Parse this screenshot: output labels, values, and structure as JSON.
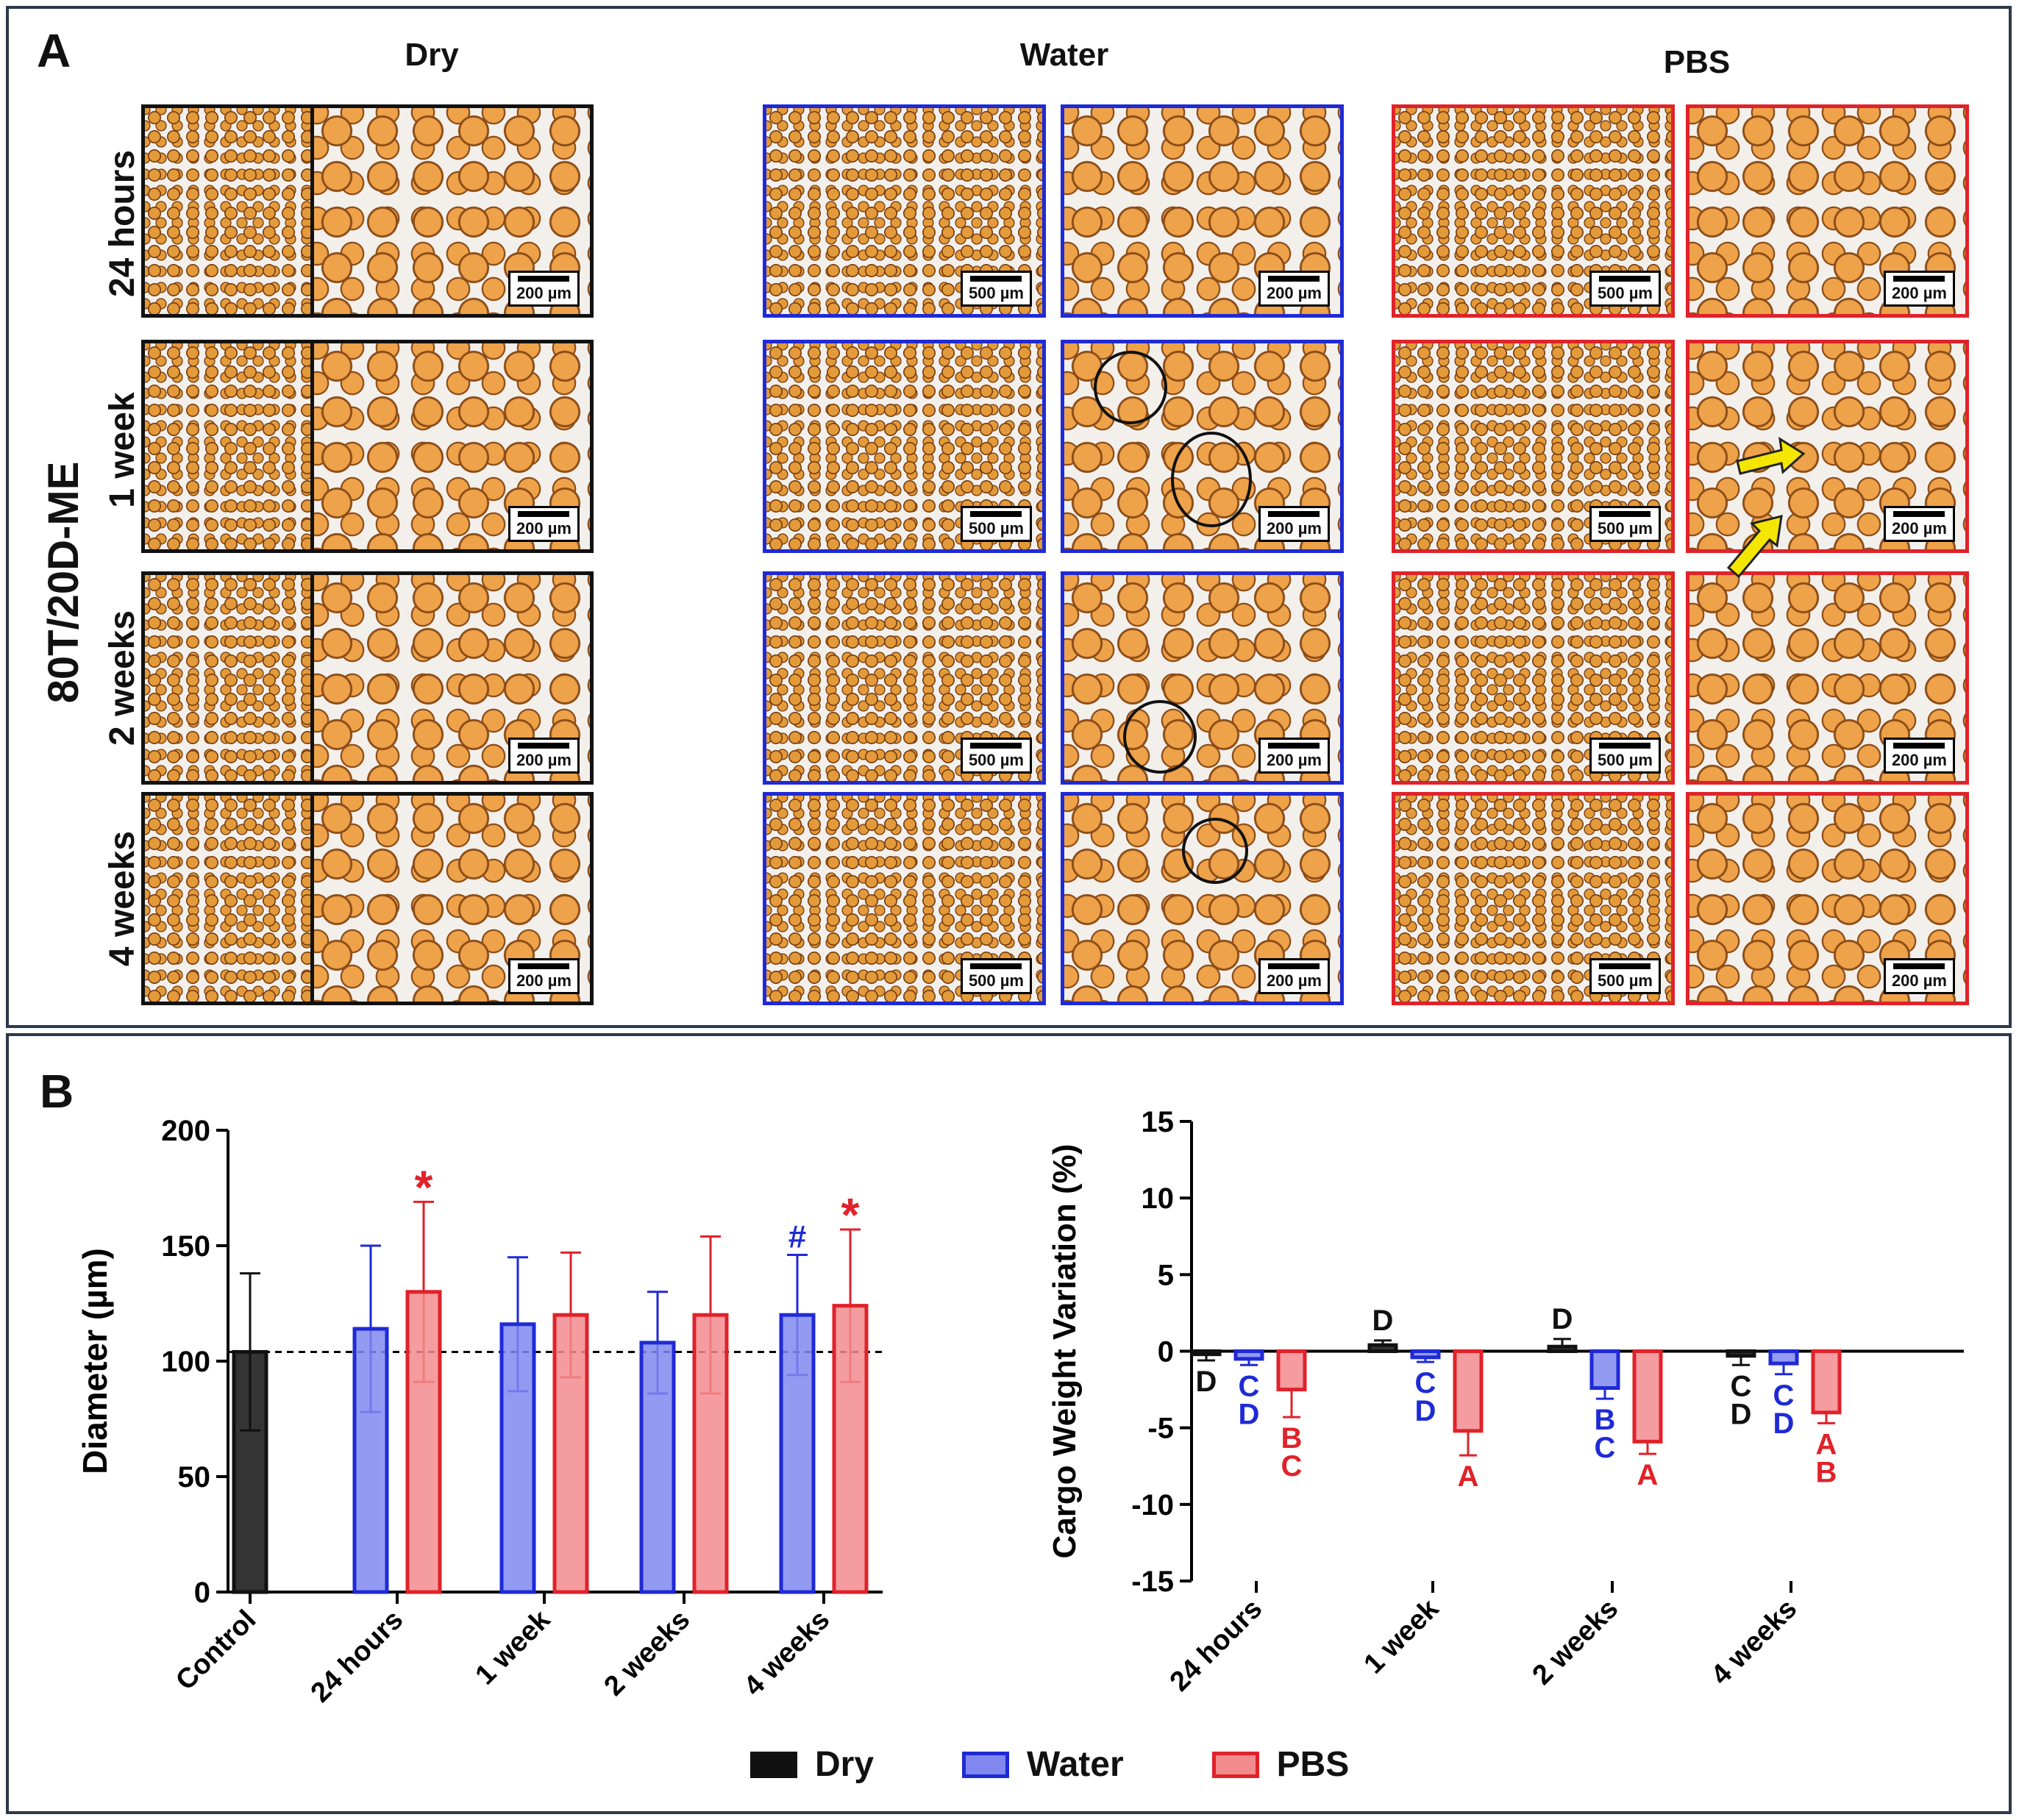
{
  "panel_a": {
    "label": "A",
    "ylabel": "80T/20D-ME",
    "columns": [
      {
        "title": "Dry",
        "color": "#111111"
      },
      {
        "title": "Water",
        "color": "#1f2ad6"
      },
      {
        "title": "PBS",
        "color": "#e0222a"
      }
    ],
    "rows": [
      "24 hours",
      "1 week",
      "2 weeks",
      "4 weeks"
    ],
    "scale_low": "500 µm",
    "scale_high": "200 µm"
  },
  "panel_b": {
    "label": "B",
    "legend": [
      {
        "name": "Dry",
        "color": "#111111",
        "fill": "#111111"
      },
      {
        "name": "Water",
        "color": "#1f2ad6",
        "fill": "#8088f0"
      },
      {
        "name": "PBS",
        "color": "#e0222a",
        "fill": "#f28b8e"
      }
    ]
  },
  "chart_data": [
    {
      "type": "bar",
      "ylabel": "Diameter (µm)",
      "ylim": [
        0,
        200
      ],
      "yticks": [
        0,
        50,
        100,
        150,
        200
      ],
      "reference_line": 104,
      "categories": [
        "Control",
        "24 hours",
        "1 week",
        "2 weeks",
        "4 weeks"
      ],
      "series": [
        {
          "name": "Dry",
          "values": [
            104,
            null,
            null,
            null,
            null
          ],
          "errors": [
            34,
            null,
            null,
            null,
            null
          ]
        },
        {
          "name": "Water",
          "values": [
            null,
            114,
            116,
            108,
            120
          ],
          "errors": [
            null,
            36,
            29,
            22,
            26
          ]
        },
        {
          "name": "PBS",
          "values": [
            null,
            130,
            120,
            120,
            124
          ],
          "errors": [
            null,
            39,
            27,
            34,
            33
          ]
        }
      ],
      "annotations": [
        {
          "category": "24 hours",
          "series": "PBS",
          "text": "*"
        },
        {
          "category": "4 weeks",
          "series": "Water",
          "text": "#"
        },
        {
          "category": "4 weeks",
          "series": "PBS",
          "text": "*"
        }
      ]
    },
    {
      "type": "bar",
      "ylabel": "Cargo Weight Variation (%)",
      "ylim": [
        -15,
        15
      ],
      "yticks": [
        -15,
        -10,
        -5,
        0,
        5,
        10,
        15
      ],
      "categories": [
        "24 hours",
        "1 week",
        "2 weeks",
        "4 weeks"
      ],
      "series": [
        {
          "name": "Dry",
          "values": [
            -0.2,
            0.4,
            0.3,
            -0.3
          ],
          "errors": [
            0.4,
            0.3,
            0.5,
            0.6
          ]
        },
        {
          "name": "Water",
          "values": [
            -0.5,
            -0.4,
            -2.4,
            -0.8
          ],
          "errors": [
            0.4,
            0.3,
            0.7,
            0.7
          ]
        },
        {
          "name": "PBS",
          "values": [
            -2.5,
            -5.2,
            -5.9,
            -4.0
          ],
          "errors": [
            1.8,
            1.6,
            0.8,
            0.7
          ]
        }
      ],
      "annotations": [
        {
          "category": "24 hours",
          "series": "Dry",
          "text": "D"
        },
        {
          "category": "24 hours",
          "series": "Water",
          "text": "C D"
        },
        {
          "category": "24 hours",
          "series": "PBS",
          "text": "B C"
        },
        {
          "category": "1 week",
          "series": "Dry",
          "text": "D"
        },
        {
          "category": "1 week",
          "series": "Water",
          "text": "C D"
        },
        {
          "category": "1 week",
          "series": "PBS",
          "text": "A"
        },
        {
          "category": "2 weeks",
          "series": "Dry",
          "text": "D"
        },
        {
          "category": "2 weeks",
          "series": "Water",
          "text": "B C"
        },
        {
          "category": "2 weeks",
          "series": "PBS",
          "text": "A"
        },
        {
          "category": "4 weeks",
          "series": "Dry",
          "text": "C D"
        },
        {
          "category": "4 weeks",
          "series": "Water",
          "text": "C D"
        },
        {
          "category": "4 weeks",
          "series": "PBS",
          "text": "A B"
        }
      ]
    }
  ]
}
